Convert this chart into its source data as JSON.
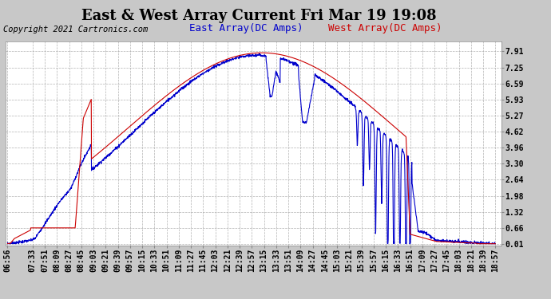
{
  "title": "East & West Array Current Fri Mar 19 19:08",
  "copyright": "Copyright 2021 Cartronics.com",
  "legend_east": "East Array(DC Amps)",
  "legend_west": "West Array(DC Amps)",
  "east_color": "#0000cc",
  "west_color": "#cc0000",
  "background_color": "#c8c8c8",
  "plot_bg_color": "#ffffff",
  "grid_color": "#aaaaaa",
  "yticks": [
    0.01,
    0.66,
    1.32,
    1.98,
    2.64,
    3.3,
    3.96,
    4.62,
    5.27,
    5.93,
    6.59,
    7.25,
    7.91
  ],
  "ylim": [
    -0.05,
    8.3
  ],
  "x_labels": [
    "06:56",
    "07:33",
    "07:51",
    "08:09",
    "08:27",
    "08:45",
    "09:03",
    "09:21",
    "09:39",
    "09:57",
    "10:15",
    "10:33",
    "10:51",
    "11:09",
    "11:27",
    "11:45",
    "12:03",
    "12:21",
    "12:39",
    "12:57",
    "13:15",
    "13:33",
    "13:51",
    "14:09",
    "14:27",
    "14:45",
    "15:03",
    "15:21",
    "15:39",
    "15:57",
    "16:15",
    "16:33",
    "16:51",
    "17:09",
    "17:27",
    "17:45",
    "18:03",
    "18:21",
    "18:39",
    "18:57"
  ],
  "title_fontsize": 13,
  "copyright_fontsize": 7.5,
  "legend_fontsize": 9,
  "tick_fontsize": 7
}
